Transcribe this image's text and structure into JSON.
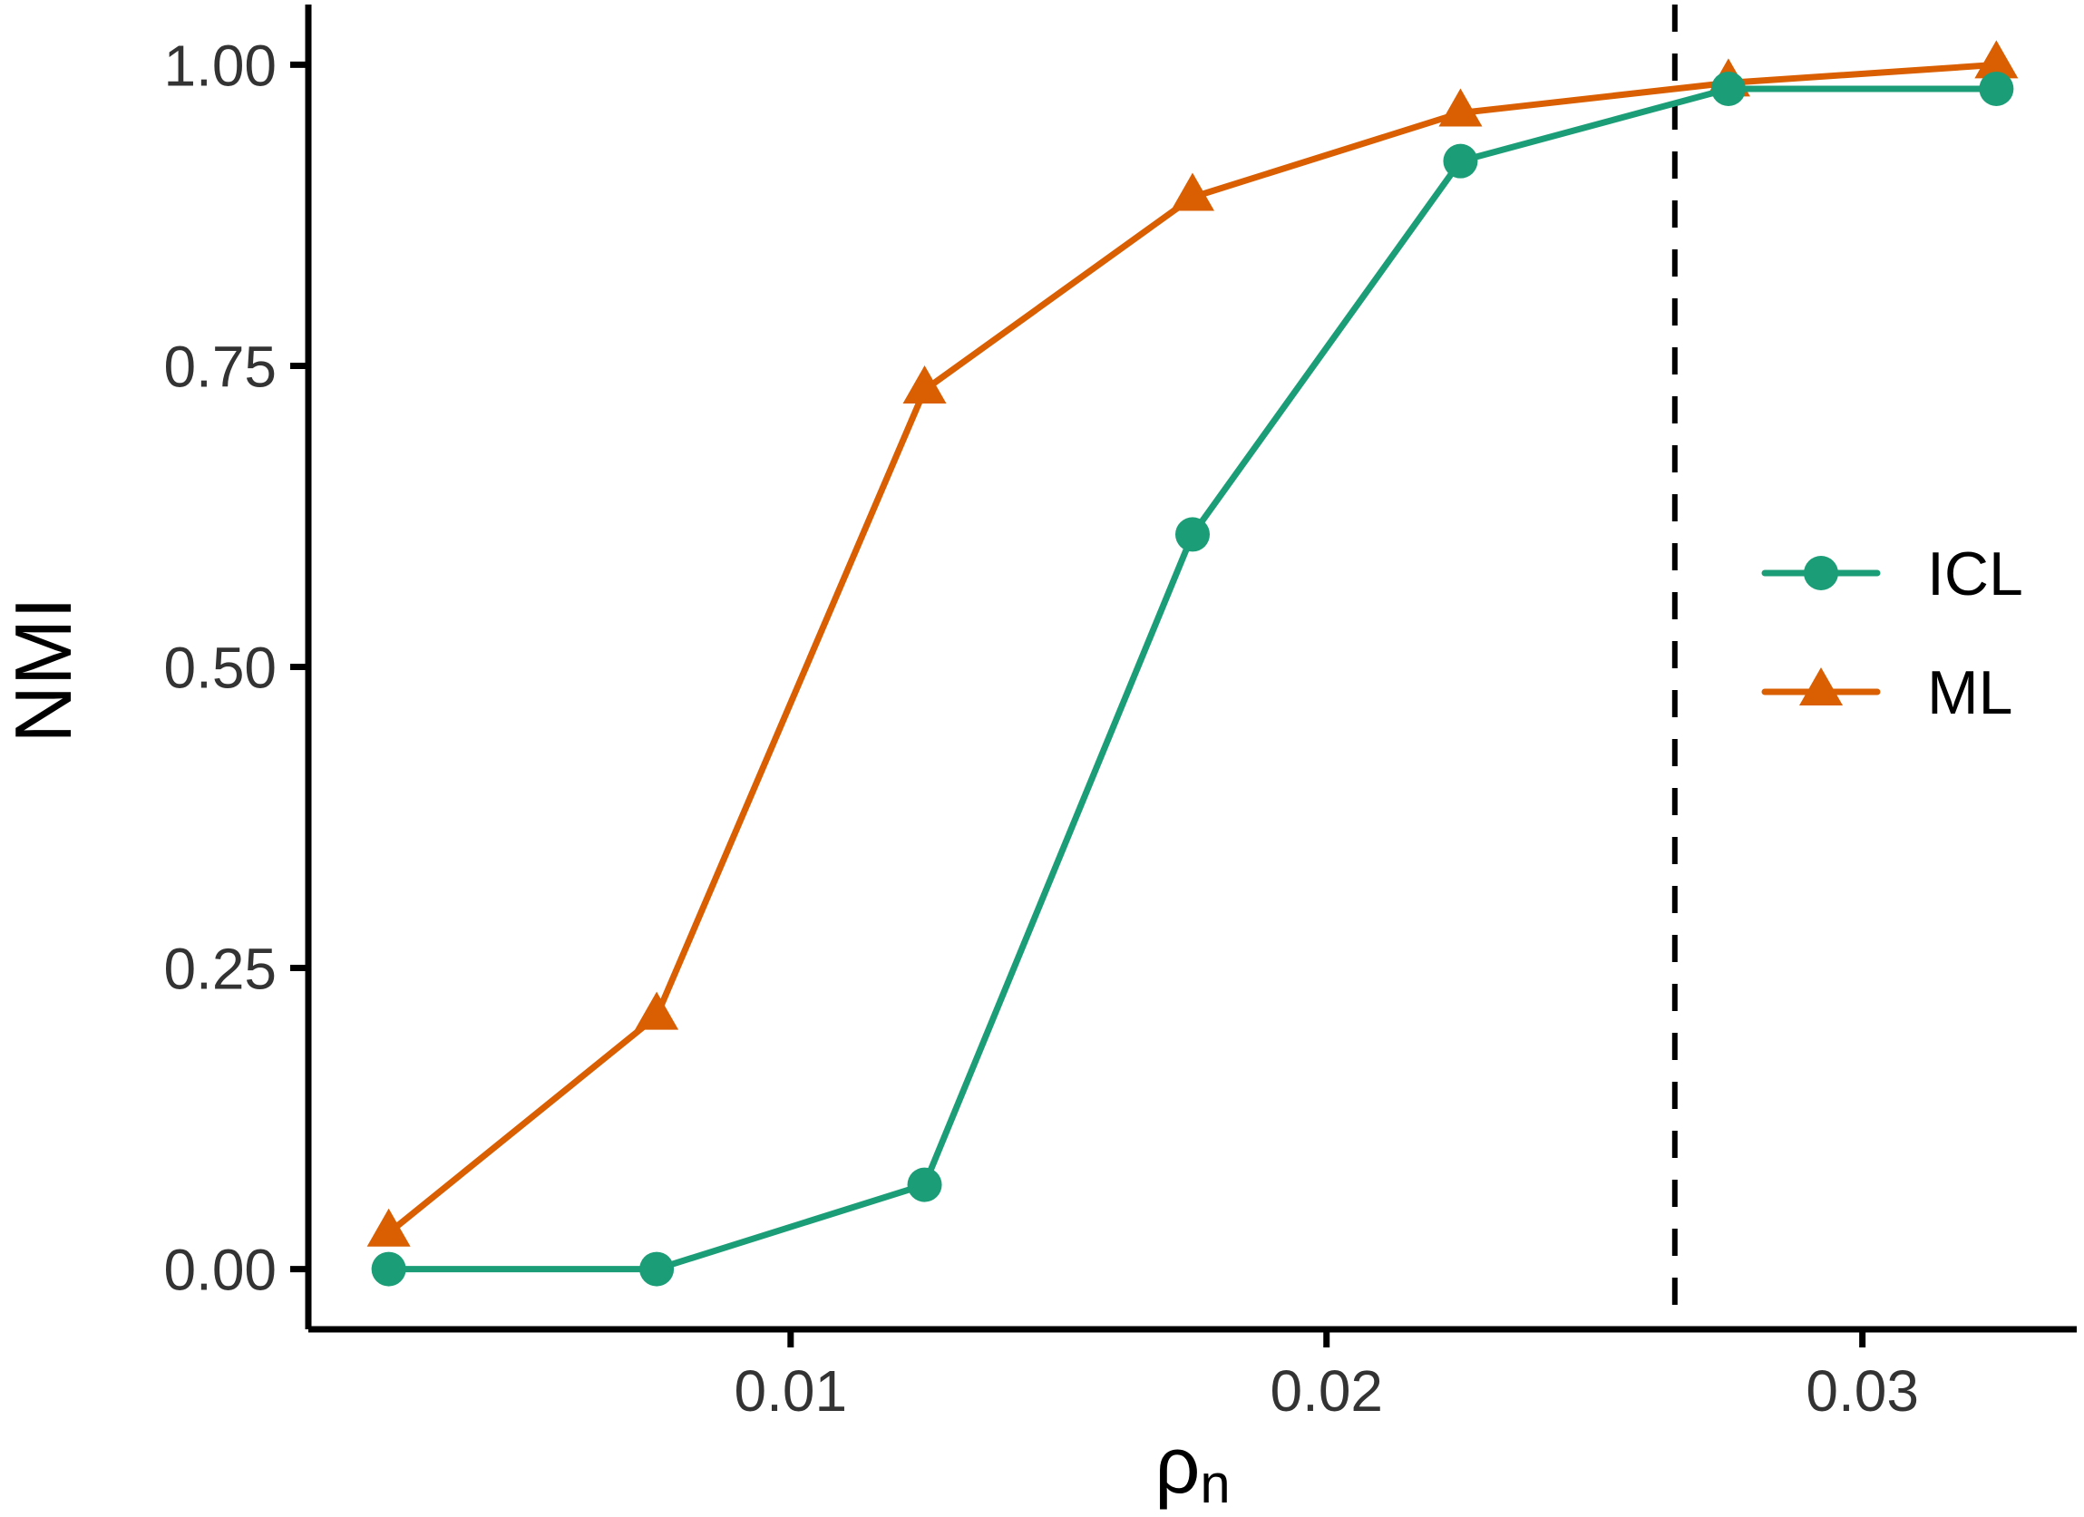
{
  "chart_data": {
    "type": "line",
    "title": "",
    "xlabel": "ρ",
    "xlabel_sub": "n",
    "ylabel": "NMI",
    "grid": false,
    "background": "#ffffff",
    "axis_color": "#000000",
    "tick_color": "#333333",
    "xlim": [
      0.001,
      0.034
    ],
    "ylim": [
      -0.05,
      1.05
    ],
    "x_ticks": [
      0.01,
      0.02,
      0.03
    ],
    "x_tick_labels": [
      "0.01",
      "0.02",
      "0.03"
    ],
    "y_ticks": [
      0.0,
      0.25,
      0.5,
      0.75,
      1.0
    ],
    "y_tick_labels": [
      "0.00",
      "0.25",
      "0.50",
      "0.75",
      "1.00"
    ],
    "x": [
      0.0025,
      0.0075,
      0.0125,
      0.0175,
      0.0225,
      0.0275,
      0.0325
    ],
    "series": [
      {
        "name": "ICL",
        "marker": "circle",
        "color": "#1B9E77",
        "values": [
          0.0,
          0.0,
          0.07,
          0.61,
          0.92,
          0.98,
          0.98
        ]
      },
      {
        "name": "ML",
        "marker": "triangle",
        "color": "#D95F02",
        "values": [
          0.03,
          0.21,
          0.73,
          0.89,
          0.96,
          0.985,
          1.0
        ]
      }
    ],
    "vline": {
      "x": 0.0265,
      "style": "dashed",
      "color": "#000000"
    },
    "legend": {
      "position": "right-inside"
    }
  }
}
